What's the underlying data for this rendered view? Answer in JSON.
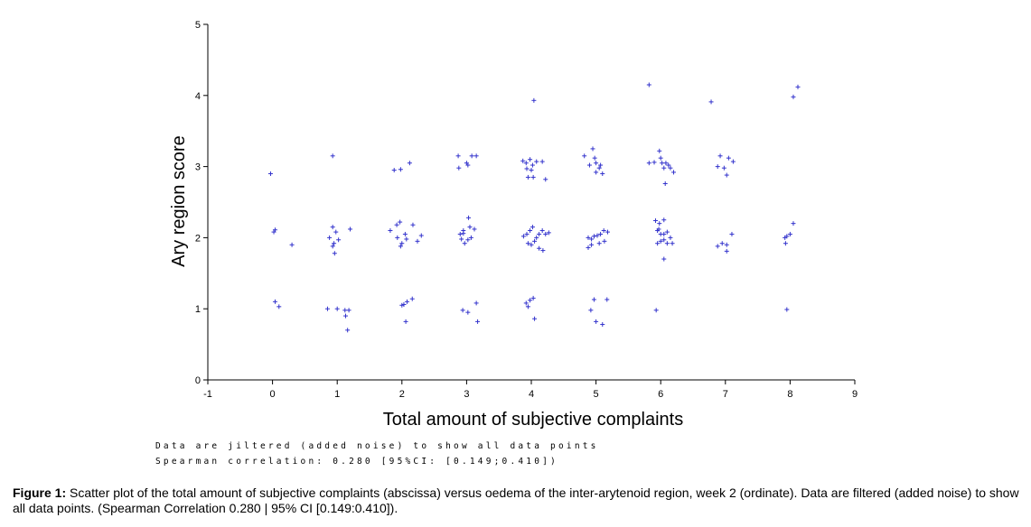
{
  "chart_data": {
    "type": "scatter",
    "xlabel": "Total amount  of subjective  complaints",
    "ylabel": "Ary region score",
    "xlim": [
      -1,
      9
    ],
    "ylim": [
      0,
      5
    ],
    "xticks": [
      "-1",
      "0",
      "1",
      "2",
      "3",
      "4",
      "5",
      "6",
      "7",
      "8",
      "9"
    ],
    "yticks": [
      "0",
      "1",
      "2",
      "3",
      "4",
      "5"
    ],
    "grid": false,
    "point_color": "#3333cc",
    "marker": "+",
    "points": [
      [
        -0.03,
        2.9
      ],
      [
        0.02,
        2.08
      ],
      [
        0.04,
        2.11
      ],
      [
        0.3,
        1.9
      ],
      [
        0.04,
        1.1
      ],
      [
        0.1,
        1.03
      ],
      [
        0.93,
        3.15
      ],
      [
        0.93,
        2.15
      ],
      [
        0.98,
        2.08
      ],
      [
        0.88,
        2.0
      ],
      [
        1.02,
        1.97
      ],
      [
        0.95,
        1.92
      ],
      [
        0.93,
        1.88
      ],
      [
        0.96,
        1.78
      ],
      [
        1.2,
        2.12
      ],
      [
        0.85,
        1.0
      ],
      [
        1.0,
        1.0
      ],
      [
        1.12,
        0.98
      ],
      [
        1.18,
        0.98
      ],
      [
        1.13,
        0.9
      ],
      [
        1.16,
        0.7
      ],
      [
        1.88,
        2.95
      ],
      [
        1.98,
        2.96
      ],
      [
        2.12,
        3.05
      ],
      [
        1.82,
        2.1
      ],
      [
        1.92,
        2.18
      ],
      [
        1.97,
        2.22
      ],
      [
        2.05,
        2.05
      ],
      [
        2.17,
        2.18
      ],
      [
        1.93,
        2.0
      ],
      [
        2.0,
        1.92
      ],
      [
        1.98,
        1.88
      ],
      [
        2.24,
        1.95
      ],
      [
        2.3,
        2.03
      ],
      [
        2.07,
        1.98
      ],
      [
        2.0,
        1.05
      ],
      [
        2.08,
        1.1
      ],
      [
        2.16,
        1.14
      ],
      [
        2.03,
        1.06
      ],
      [
        2.06,
        0.82
      ],
      [
        2.87,
        3.15
      ],
      [
        2.88,
        2.98
      ],
      [
        3.0,
        3.05
      ],
      [
        3.02,
        3.02
      ],
      [
        3.08,
        3.15
      ],
      [
        3.15,
        3.15
      ],
      [
        2.9,
        2.05
      ],
      [
        2.95,
        2.1
      ],
      [
        3.03,
        2.28
      ],
      [
        3.05,
        2.15
      ],
      [
        3.12,
        2.12
      ],
      [
        2.92,
        1.98
      ],
      [
        2.97,
        1.92
      ],
      [
        3.02,
        1.97
      ],
      [
        3.07,
        2.0
      ],
      [
        2.95,
        2.06
      ],
      [
        2.94,
        0.98
      ],
      [
        3.02,
        0.95
      ],
      [
        3.15,
        1.08
      ],
      [
        3.17,
        0.82
      ],
      [
        3.87,
        3.08
      ],
      [
        3.92,
        3.05
      ],
      [
        3.98,
        3.1
      ],
      [
        4.02,
        3.02
      ],
      [
        4.08,
        3.07
      ],
      [
        4.17,
        3.07
      ],
      [
        3.93,
        2.97
      ],
      [
        4.0,
        2.95
      ],
      [
        3.95,
        2.85
      ],
      [
        4.03,
        2.85
      ],
      [
        4.22,
        2.82
      ],
      [
        4.04,
        3.93
      ],
      [
        3.88,
        2.02
      ],
      [
        3.93,
        2.05
      ],
      [
        3.98,
        2.1
      ],
      [
        4.02,
        2.15
      ],
      [
        4.08,
        2.0
      ],
      [
        4.12,
        2.05
      ],
      [
        4.17,
        2.1
      ],
      [
        4.22,
        2.05
      ],
      [
        4.05,
        1.95
      ],
      [
        4.0,
        1.9
      ],
      [
        3.95,
        1.92
      ],
      [
        4.12,
        1.85
      ],
      [
        4.18,
        1.82
      ],
      [
        4.27,
        2.07
      ],
      [
        3.92,
        1.08
      ],
      [
        3.98,
        1.12
      ],
      [
        4.03,
        1.15
      ],
      [
        3.95,
        1.03
      ],
      [
        4.05,
        0.86
      ],
      [
        4.82,
        3.15
      ],
      [
        4.95,
        3.25
      ],
      [
        4.98,
        3.12
      ],
      [
        4.9,
        3.02
      ],
      [
        5.0,
        3.05
      ],
      [
        5.05,
        2.98
      ],
      [
        5.07,
        3.02
      ],
      [
        5.0,
        2.92
      ],
      [
        5.1,
        2.9
      ],
      [
        4.97,
        2.02
      ],
      [
        5.02,
        2.03
      ],
      [
        4.93,
        1.98
      ],
      [
        4.88,
        2.0
      ],
      [
        5.07,
        2.05
      ],
      [
        5.12,
        2.1
      ],
      [
        5.05,
        1.92
      ],
      [
        5.13,
        1.95
      ],
      [
        5.18,
        2.08
      ],
      [
        4.93,
        1.9
      ],
      [
        4.88,
        1.86
      ],
      [
        4.97,
        1.13
      ],
      [
        5.17,
        1.13
      ],
      [
        4.92,
        0.98
      ],
      [
        5.0,
        0.82
      ],
      [
        5.1,
        0.78
      ],
      [
        5.82,
        4.15
      ],
      [
        5.82,
        3.05
      ],
      [
        5.9,
        3.06
      ],
      [
        5.98,
        3.22
      ],
      [
        6.0,
        3.12
      ],
      [
        6.02,
        3.05
      ],
      [
        6.08,
        3.05
      ],
      [
        6.12,
        3.02
      ],
      [
        6.15,
        2.98
      ],
      [
        6.05,
        2.98
      ],
      [
        6.2,
        2.92
      ],
      [
        6.07,
        2.76
      ],
      [
        5.92,
        2.24
      ],
      [
        5.98,
        2.2
      ],
      [
        6.05,
        2.25
      ],
      [
        5.95,
        2.1
      ],
      [
        6.0,
        2.05
      ],
      [
        6.05,
        2.05
      ],
      [
        6.1,
        2.08
      ],
      [
        6.15,
        2.0
      ],
      [
        6.18,
        1.92
      ],
      [
        6.1,
        1.92
      ],
      [
        6.05,
        1.97
      ],
      [
        6.0,
        1.95
      ],
      [
        5.95,
        1.92
      ],
      [
        5.97,
        2.12
      ],
      [
        6.05,
        1.7
      ],
      [
        5.93,
        0.98
      ],
      [
        6.78,
        3.91
      ],
      [
        6.92,
        3.15
      ],
      [
        7.05,
        3.12
      ],
      [
        6.88,
        3.0
      ],
      [
        6.98,
        2.98
      ],
      [
        7.12,
        3.07
      ],
      [
        7.02,
        2.88
      ],
      [
        6.88,
        1.88
      ],
      [
        6.95,
        1.92
      ],
      [
        7.02,
        1.9
      ],
      [
        7.1,
        2.05
      ],
      [
        7.02,
        1.81
      ],
      [
        8.12,
        4.12
      ],
      [
        8.05,
        3.98
      ],
      [
        7.92,
        2.0
      ],
      [
        7.95,
        2.02
      ],
      [
        8.0,
        2.05
      ],
      [
        8.05,
        2.2
      ],
      [
        7.93,
        1.92
      ],
      [
        7.95,
        0.99
      ]
    ]
  },
  "notes": {
    "line1": "Data are jiltered (added noise) to show all data points",
    "line2": "Spearman correlation: 0.280 [95%CI: [0.149;0.410])"
  },
  "caption": {
    "label": "Figure 1:",
    "text": " Scatter plot of the total amount of subjective complaints (abscissa) versus oedema of the inter-arytenoid region, week 2 (ordinate). Data are filtered (added noise) to show all data points. (Spearman Correlation 0.280 | 95% CI [0.149:0.410])."
  }
}
